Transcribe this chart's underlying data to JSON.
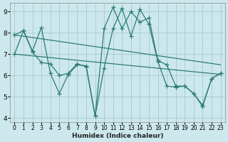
{
  "background_color": "#cce8ec",
  "grid_color": "#a8c8d0",
  "line_color": "#2e7d72",
  "xlabel": "Humidex (Indice chaleur)",
  "xlim": [
    -0.5,
    23.5
  ],
  "ylim": [
    3.8,
    9.4
  ],
  "yticks": [
    4,
    5,
    6,
    7,
    8,
    9
  ],
  "xticks": [
    0,
    1,
    2,
    3,
    4,
    5,
    6,
    7,
    8,
    9,
    10,
    11,
    12,
    13,
    14,
    15,
    16,
    17,
    18,
    19,
    20,
    21,
    22,
    23
  ],
  "lines": [
    {
      "x": [
        0,
        1,
        2,
        3,
        4,
        5,
        6,
        7,
        8,
        9,
        10,
        11,
        12,
        13,
        14,
        15,
        16,
        17,
        18,
        19,
        20,
        21,
        22,
        23
      ],
      "y": [
        7.9,
        8.1,
        7.1,
        6.6,
        6.55,
        6.0,
        6.1,
        6.55,
        6.4,
        4.1,
        8.2,
        9.2,
        8.2,
        9.0,
        8.5,
        8.7,
        6.7,
        6.5,
        5.5,
        5.5,
        5.15,
        4.55,
        5.85,
        6.1
      ]
    },
    {
      "x": [
        0,
        1,
        2,
        3,
        4,
        5,
        6,
        7,
        8,
        9,
        10,
        11,
        12,
        13,
        14,
        15,
        16,
        17,
        18,
        19,
        20,
        21,
        22,
        23
      ],
      "y": [
        7.0,
        8.1,
        7.15,
        8.25,
        6.1,
        5.15,
        6.05,
        6.5,
        6.45,
        4.1,
        6.35,
        8.2,
        9.15,
        7.85,
        9.1,
        8.4,
        6.65,
        5.5,
        5.45,
        5.5,
        5.15,
        4.6,
        5.85,
        6.1
      ]
    },
    {
      "x": [
        0,
        23
      ],
      "y": [
        7.9,
        6.5
      ]
    },
    {
      "x": [
        0,
        23
      ],
      "y": [
        7.0,
        6.05
      ]
    }
  ]
}
